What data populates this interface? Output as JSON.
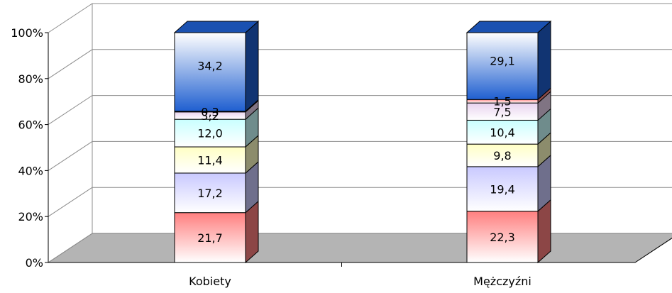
{
  "chart_data": {
    "type": "bar",
    "stacked": true,
    "percent": true,
    "three_d": true,
    "categories": [
      "Kobiety",
      "Mężczyźni"
    ],
    "series": [
      {
        "values": [
          21.7,
          22.3
        ],
        "labels": [
          "21,7",
          "22,3"
        ],
        "color": "#ff7f7f"
      },
      {
        "values": [
          17.2,
          19.4
        ],
        "labels": [
          "17,2",
          "19,4"
        ],
        "color": "#c9c9ff"
      },
      {
        "values": [
          11.4,
          9.8
        ],
        "labels": [
          "11,4",
          "9,8"
        ],
        "color": "#ffffc4"
      },
      {
        "values": [
          12.0,
          10.4
        ],
        "labels": [
          "12,0",
          "10,4"
        ],
        "color": "#c9ffff"
      },
      {
        "values": [
          3.2,
          7.5
        ],
        "labels": [
          "3,2",
          "7,5"
        ],
        "color": "#e8d2ee"
      },
      {
        "values": [
          0.3,
          1.5
        ],
        "labels": [
          "0,3",
          "1,5"
        ],
        "color": "#ff8a8a"
      },
      {
        "values": [
          34.2,
          29.1
        ],
        "labels": [
          "34,2",
          "29,1"
        ],
        "color": "#1f5fd0"
      }
    ],
    "yticks": [
      "0%",
      "20%",
      "40%",
      "60%",
      "80%",
      "100%"
    ],
    "ylim": [
      0,
      100
    ],
    "grid": true,
    "legend": "none"
  }
}
